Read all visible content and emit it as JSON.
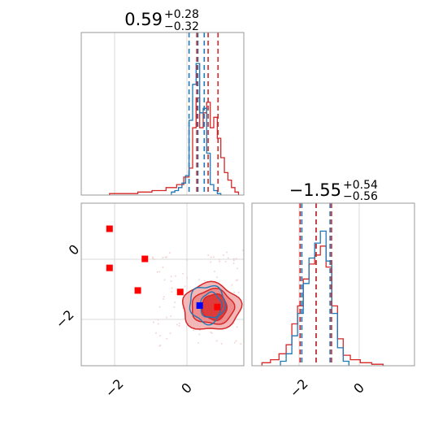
{
  "colors": {
    "blue": "#1f77b4",
    "red": "#d62728",
    "red_fill_light": "#f2b8b8",
    "red_fill_mid": "#ec8c8c",
    "red_fill_dark": "#e03b3b",
    "square_red": "#ff0000",
    "square_blue": "#0000ff"
  },
  "panels": {
    "top": {
      "title": {
        "main": "0.59",
        "sup": "+0.28",
        "sub": "−0.32"
      }
    },
    "right": {
      "title": {
        "main": "−1.55",
        "sup": "+0.54",
        "sub": "−0.56"
      }
    },
    "xticks_left": [
      "−2",
      "0"
    ],
    "yticks_left": [
      "0",
      "−2"
    ],
    "xticks_right": [
      "−2",
      "0"
    ]
  },
  "chart_data": [
    {
      "type": "histogram",
      "panel": "param-1-marginal",
      "xlim": [
        -3.0,
        1.6
      ],
      "grid": true,
      "quantile_lines_red": [
        0.27,
        0.59,
        0.87
      ],
      "quantile_lines_blue": [
        0.05,
        0.3,
        0.48
      ],
      "series_blue": {
        "bin_centers": [
          -0.4,
          -0.3,
          -0.2,
          -0.1,
          0.0,
          0.1,
          0.2,
          0.3,
          0.4,
          0.5,
          0.6,
          0.7,
          0.8,
          0.9
        ],
        "counts": [
          0.02,
          0.03,
          0.05,
          0.08,
          0.13,
          0.5,
          0.74,
          0.88,
          0.55,
          0.58,
          0.28,
          0.07,
          0.03,
          0.01
        ]
      },
      "series_red": {
        "bin_centers": [
          -2.0,
          -1.6,
          -1.2,
          -0.8,
          -0.4,
          -0.2,
          0.0,
          0.1,
          0.2,
          0.3,
          0.4,
          0.5,
          0.6,
          0.7,
          0.8,
          0.9,
          1.0,
          1.1,
          1.2,
          1.3,
          1.4
        ],
        "counts": [
          0.01,
          0.01,
          0.02,
          0.03,
          0.05,
          0.07,
          0.12,
          0.18,
          0.45,
          0.65,
          0.45,
          0.55,
          0.62,
          0.45,
          0.52,
          0.38,
          0.25,
          0.15,
          0.1,
          0.05,
          0.02
        ]
      }
    },
    {
      "type": "contour",
      "panel": "2d-joint",
      "xlim": [
        -3.0,
        1.6
      ],
      "ylim": [
        -3.5,
        1.9
      ],
      "grid": true,
      "contour_center": [
        0.72,
        -1.55
      ],
      "contour_half_widths_x": [
        0.35,
        0.6,
        0.82
      ],
      "contour_half_widths_y": [
        0.7,
        1.05,
        1.5
      ],
      "red_markers": [
        [
          -2.2,
          1.05
        ],
        [
          -2.2,
          -0.25
        ],
        [
          -1.2,
          0.05
        ],
        [
          -1.4,
          -1.0
        ],
        [
          -0.2,
          -1.05
        ],
        [
          0.85,
          -1.55
        ]
      ],
      "blue_markers": [
        [
          0.35,
          -1.5
        ]
      ]
    },
    {
      "type": "histogram",
      "panel": "param-2-marginal",
      "xlim": [
        -3.8,
        1.9
      ],
      "grid": true,
      "quantile_lines_red": [
        -2.11,
        -1.55,
        -1.01
      ],
      "quantile_lines_blue": [
        -2.05,
        -1.55,
        -1.06
      ],
      "series_blue": {
        "bin_centers": [
          -2.7,
          -2.5,
          -2.3,
          -2.1,
          -1.9,
          -1.7,
          -1.5,
          -1.3,
          -1.1,
          -0.9,
          -0.7,
          -0.5
        ],
        "counts": [
          0.03,
          0.08,
          0.2,
          0.35,
          0.55,
          0.72,
          0.82,
          0.9,
          0.7,
          0.35,
          0.12,
          0.03
        ]
      },
      "series_red": {
        "bin_centers": [
          -3.3,
          -3.0,
          -2.7,
          -2.5,
          -2.3,
          -2.1,
          -1.9,
          -1.7,
          -1.5,
          -1.3,
          -1.1,
          -0.9,
          -0.7,
          -0.5,
          -0.2,
          0.2,
          0.6
        ],
        "counts": [
          0.02,
          0.04,
          0.08,
          0.14,
          0.28,
          0.4,
          0.58,
          0.68,
          0.74,
          0.8,
          0.66,
          0.4,
          0.18,
          0.07,
          0.04,
          0.02,
          0.01
        ]
      }
    }
  ]
}
